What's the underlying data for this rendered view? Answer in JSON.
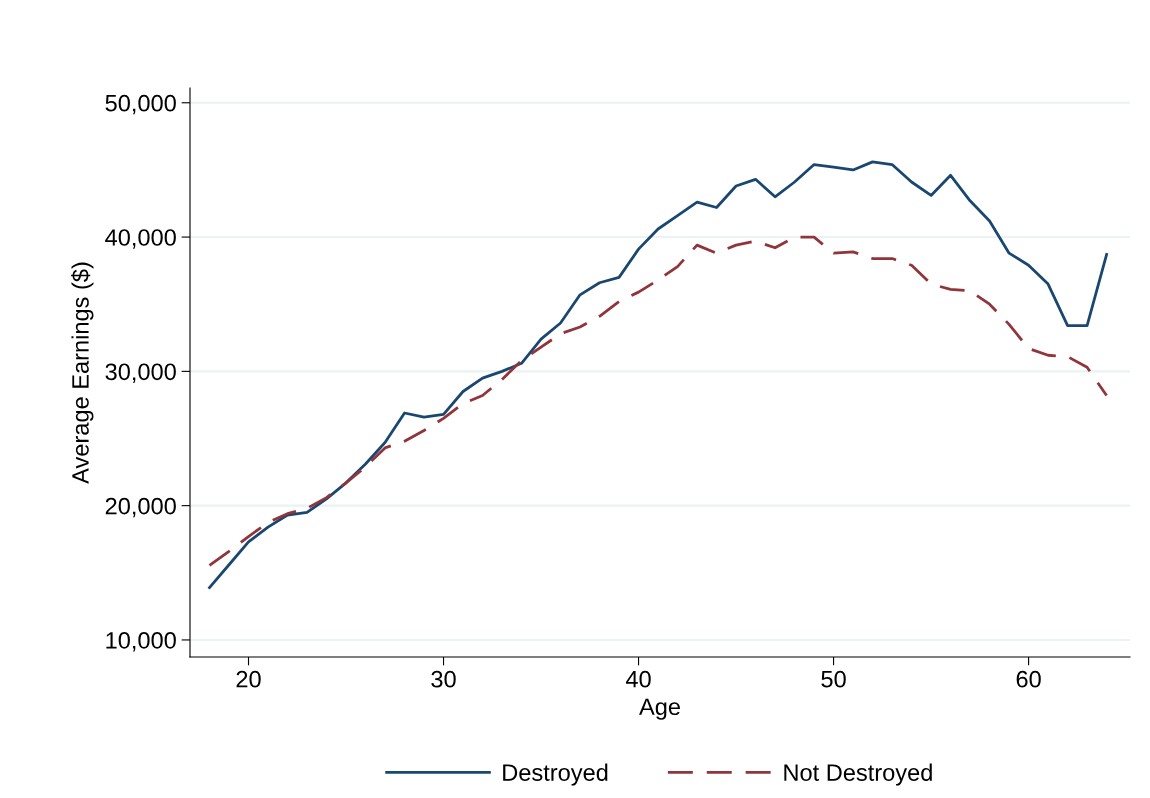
{
  "chart_data": {
    "type": "line",
    "xlabel": "Age",
    "ylabel": "Average Earnings ($)",
    "x": [
      18,
      19,
      20,
      21,
      22,
      23,
      24,
      25,
      26,
      27,
      28,
      29,
      30,
      31,
      32,
      33,
      34,
      35,
      36,
      37,
      38,
      39,
      40,
      41,
      42,
      43,
      44,
      45,
      46,
      47,
      48,
      49,
      50,
      51,
      52,
      53,
      54,
      55,
      56,
      57,
      58,
      59,
      60,
      61,
      62,
      63,
      64
    ],
    "series": [
      {
        "name": "Destroyed",
        "color": "#1a476f",
        "line_style": "solid",
        "values": [
          13900,
          15600,
          17300,
          18400,
          19300,
          19500,
          20500,
          21700,
          23100,
          24700,
          26900,
          26600,
          26800,
          28500,
          29500,
          30000,
          30600,
          32400,
          33600,
          35700,
          36600,
          37000,
          39100,
          40600,
          41600,
          42600,
          42200,
          43800,
          44300,
          43000,
          44100,
          45400,
          45200,
          45000,
          45600,
          45400,
          44100,
          43100,
          44600,
          42700,
          41200,
          38800,
          37900,
          36500,
          33400,
          33400,
          38700
        ]
      },
      {
        "name": "Not Destroyed",
        "color": "#90353b",
        "line_style": "dashed",
        "values": [
          15550,
          16600,
          17700,
          18750,
          19400,
          19800,
          20600,
          21700,
          22900,
          24300,
          24800,
          25600,
          26500,
          27600,
          28200,
          29400,
          30800,
          31800,
          32800,
          33300,
          34100,
          35200,
          35900,
          36800,
          37800,
          39400,
          38800,
          39400,
          39700,
          39200,
          40000,
          40000,
          38800,
          38900,
          38400,
          38400,
          37900,
          36500,
          36100,
          36000,
          35000,
          33500,
          31700,
          31200,
          31100,
          30300,
          28200
        ]
      }
    ],
    "xlim": [
      17,
      65.2
    ],
    "xticks": [
      20,
      30,
      40,
      50,
      60
    ],
    "ylim": [
      8730,
      51100
    ],
    "yticks": [
      {
        "value": 10000,
        "label": "10,000"
      },
      {
        "value": 20000,
        "label": "20,000"
      },
      {
        "value": 30000,
        "label": "30,000"
      },
      {
        "value": 40000,
        "label": "40,000"
      },
      {
        "value": 50000,
        "label": "50,000"
      }
    ],
    "grid": "y",
    "legend": "bottom",
    "marker": "none"
  }
}
